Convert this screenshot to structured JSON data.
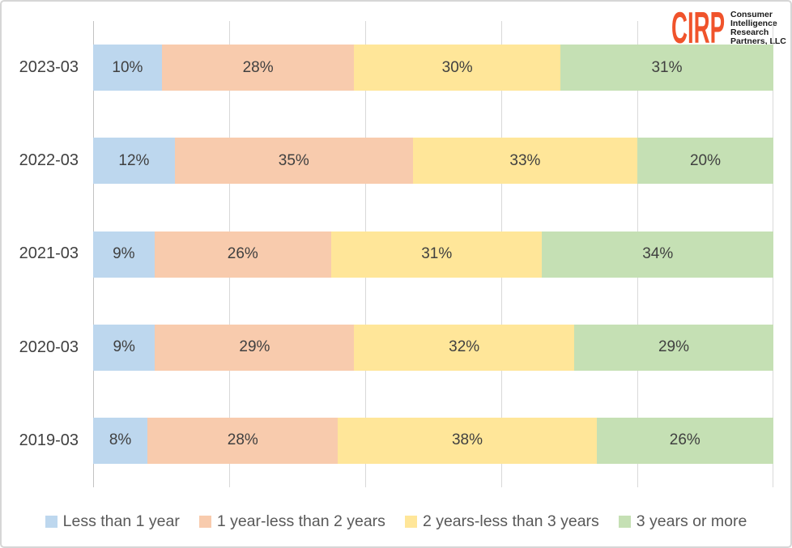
{
  "logo": {
    "acronym": "CIRP",
    "lines": [
      "Consumer",
      "Intelligence",
      "Research",
      "Partners, LLC"
    ],
    "accent_color": "#F0532B",
    "text_color": "#1A1A1A"
  },
  "chart_data": {
    "type": "bar",
    "orientation": "horizontal",
    "stacked": true,
    "title": "",
    "xlabel": "",
    "ylabel": "",
    "categories": [
      "2023-03",
      "2022-03",
      "2021-03",
      "2020-03",
      "2019-03"
    ],
    "series": [
      {
        "name": "Less than 1 year",
        "color": "#BDD7EE",
        "values": [
          10,
          12,
          9,
          9,
          8
        ]
      },
      {
        "name": "1 year-less than 2 years",
        "color": "#F8CBAD",
        "values": [
          28,
          35,
          26,
          29,
          28
        ]
      },
      {
        "name": "2 years-less than 3 years",
        "color": "#FFE699",
        "values": [
          30,
          33,
          31,
          32,
          38
        ]
      },
      {
        "name": "3 years or more",
        "color": "#C5E0B4",
        "values": [
          31,
          20,
          34,
          29,
          26
        ]
      }
    ],
    "value_suffix": "%",
    "xlim": [
      0,
      100
    ],
    "gridline_interval_pct": 20,
    "grid": true,
    "legend_position": "bottom"
  },
  "style_colors": {
    "gridline": "#D9D9D9",
    "axis_line": "#C3C3C3",
    "data_label_text": "#404040",
    "category_label_text": "#404040",
    "legend_text": "#595959",
    "frame_border": "#D6D6D6"
  }
}
